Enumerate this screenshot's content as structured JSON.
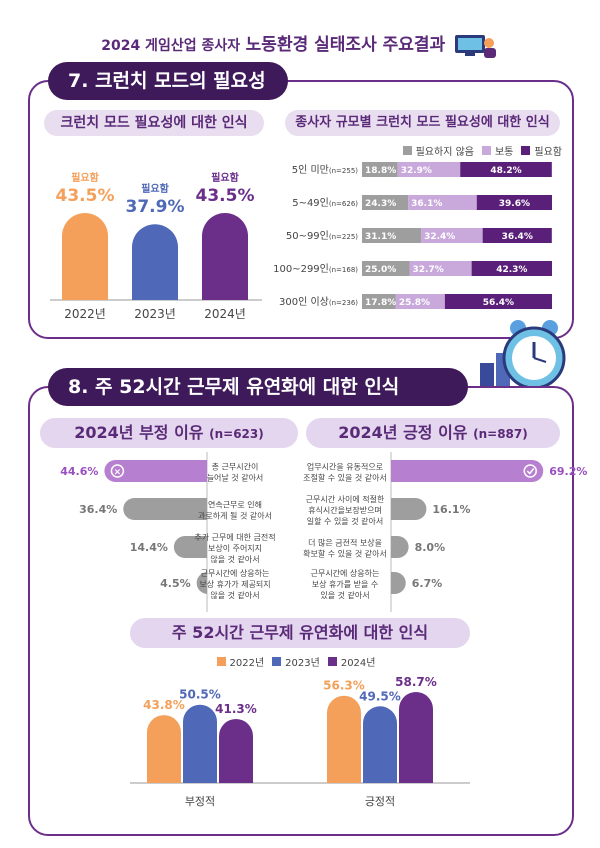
{
  "header": {
    "year_title": "2024 게임산업 종사자",
    "main_title": "노동환경 실태조사 주요결과"
  },
  "section7": {
    "title": "7. 크런치 모드의 필요성",
    "left_subtitle": "크런치 모드 필요성에 대한 인식",
    "right_subtitle": "종사자 규모별 크런치 모드 필요성에 대한 인식"
  },
  "section8": {
    "title": "8. 주 52시간 근무제 유연화에 대한 인식",
    "neg_title": "2024년 부정 이유",
    "neg_n": "(n=623)",
    "pos_title": "2024년 긍정 이유",
    "pos_n": "(n=887)",
    "bottom_title": "주 52시간 근무제 유연화에 대한 인식"
  },
  "colors": {
    "orange": "#f4a05a",
    "blue": "#5068b8",
    "purple": "#6b2f8a",
    "gray": "#9e9e9e",
    "light_purple": "#c9a9dc",
    "dark_purple": "#5a1f78"
  },
  "chart_data": [
    {
      "type": "bar",
      "title": "크런치 모드 필요성에 대한 인식",
      "categories": [
        "2022년",
        "2023년",
        "2024년"
      ],
      "label": "필요함",
      "values": [
        43.5,
        37.9,
        43.5
      ],
      "value_labels": [
        "43.5%",
        "37.9%",
        "43.5%"
      ]
    },
    {
      "type": "bar",
      "title": "종사자 규모별 크런치 모드 필요성에 대한 인식",
      "orientation": "horizontal-stacked",
      "legend": [
        "필요하지 않음",
        "보통",
        "필요함"
      ],
      "legend_placement": "top-right",
      "categories": [
        {
          "main": "5인 미만",
          "n": "(n=255)"
        },
        {
          "main": "5~49인",
          "n": "(n=626)"
        },
        {
          "main": "50~99인",
          "n": "(n=225)"
        },
        {
          "main": "100~299인",
          "n": "(n=168)"
        },
        {
          "main": "300인 이상",
          "n": "(n=236)"
        }
      ],
      "series": [
        {
          "name": "필요하지 않음",
          "values": [
            18.8,
            24.3,
            31.1,
            25.0,
            17.8
          ],
          "labels": [
            "18.8%",
            "24.3%",
            "31.1%",
            "25.0%",
            "17.8%"
          ]
        },
        {
          "name": "보통",
          "values": [
            32.9,
            36.1,
            32.4,
            32.7,
            25.8
          ],
          "labels": [
            "32.9%",
            "36.1%",
            "32.4%",
            "32.7%",
            "25.8%"
          ]
        },
        {
          "name": "필요함",
          "values": [
            48.2,
            39.6,
            36.4,
            42.3,
            56.4
          ],
          "labels": [
            "48.2%",
            "39.6%",
            "36.4%",
            "42.3%",
            "56.4%"
          ]
        }
      ]
    },
    {
      "type": "bar",
      "title": "2024년 부정 이유 (n=623)",
      "orientation": "horizontal",
      "categories": [
        "총 근무시간이 늘어날 것 같아서",
        "연속근무로 인해 과로하게 될 것 같아서",
        "추가 근무에 대한 금전적 보상이 주어지지 않을 것 같아서",
        "근무시간에 상응하는 보상 휴가가 제공되지 않을 것 같아서"
      ],
      "category_lines": [
        [
          "총 근무시간이",
          "늘어날 것 같아서"
        ],
        [
          "연속근무로 인해",
          "과로하게 될 것 같아서"
        ],
        [
          "추가 근무에 대한 금전적",
          "보상이 주어지지",
          "않을 것 같아서"
        ],
        [
          "근무시간에 상응하는",
          "보상 휴가가 제공되지",
          "않을 것 같아서"
        ]
      ],
      "values": [
        44.6,
        36.4,
        14.4,
        4.5
      ],
      "value_labels": [
        "44.6%",
        "36.4%",
        "14.4%",
        "4.5%"
      ]
    },
    {
      "type": "bar",
      "title": "2024년 긍정 이유 (n=887)",
      "orientation": "horizontal",
      "categories": [
        "업무시간을 유동적으로 조절할 수 있을 것 같아서",
        "근무시간 사이에 적절한 휴식시간을보장받으며 일할 수 있을 것 같아서",
        "더 많은 금전적 보상을 확보할 수 있을 것 같아서",
        "근무시간에 상응하는 보상 휴가를 받을 수 있을 것 같아서"
      ],
      "category_lines": [
        [
          "업무시간을 유동적으로",
          "조절할 수 있을 것 같아서"
        ],
        [
          "근무시간 사이에 적절한",
          "휴식시간을보장받으며",
          "일할 수 있을 것 같아서"
        ],
        [
          "더 많은 금전적 보상을",
          "확보할 수 있을 것 같아서"
        ],
        [
          "근무시간에 상응하는",
          "보상 휴가를 받을 수",
          "있을 것 같아서"
        ]
      ],
      "values": [
        69.2,
        16.1,
        8.0,
        6.7
      ],
      "value_labels": [
        "69.2%",
        "16.1%",
        "8.0%",
        "6.7%"
      ]
    },
    {
      "type": "bar",
      "title": "주 52시간 근무제 유연화에 대한 인식",
      "categories": [
        "부정적",
        "긍정적"
      ],
      "legend": [
        "2022년",
        "2023년",
        "2024년"
      ],
      "legend_placement": "top",
      "series": [
        {
          "name": "2022년",
          "values": [
            43.8,
            56.3
          ],
          "labels": [
            "43.8%",
            "56.3%"
          ]
        },
        {
          "name": "2023년",
          "values": [
            50.5,
            49.5
          ],
          "labels": [
            "50.5%",
            "49.5%"
          ]
        },
        {
          "name": "2024년",
          "values": [
            41.3,
            58.7
          ],
          "labels": [
            "41.3%",
            "58.7%"
          ]
        }
      ]
    }
  ]
}
